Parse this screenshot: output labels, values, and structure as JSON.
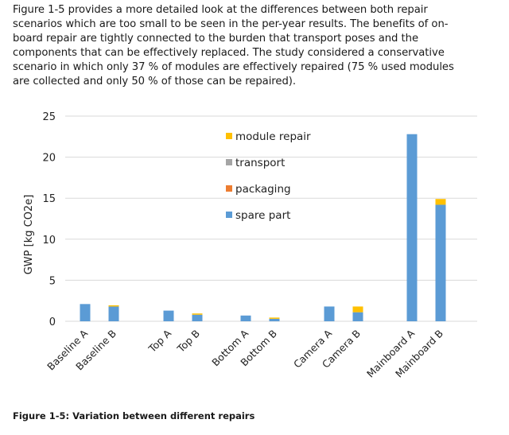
{
  "paragraph": {
    "lines": [
      "Figure 1-5 provides a more detailed look at the differences between both repair",
      "scenarios which are too small to be seen in the per-year results. The benefits of on-",
      "board repair are tightly connected to the burden that transport poses and the",
      "components that can be effectively replaced. The study considered a conservative",
      "scenario in which only 37 % of modules are effectively repaired (75 % used modules",
      "are collected and only 50 % of those can be repaired)."
    ]
  },
  "caption": "Figure 1-5: Variation between different repairs",
  "colors": {
    "spare_part": "#5b9bd5",
    "packaging": "#ed7d31",
    "transport": "#a5a5a5",
    "module_repair": "#ffc000",
    "gridline": "#d9d9d9"
  },
  "chart_data": {
    "type": "bar",
    "stacked": true,
    "title": "",
    "xlabel": "",
    "ylabel": "GWP [kg CO2e]",
    "ylim": [
      0,
      25
    ],
    "yticks": [
      "0",
      "5",
      "10",
      "15",
      "20",
      "25"
    ],
    "grid": true,
    "legend_position": "upper middle",
    "categories": [
      "Baseline A",
      "Baseline B",
      "Top A",
      "Top B",
      "Bottom A",
      "Bottom B",
      "Camera A",
      "Camera B",
      "Mainboard A",
      "Mainboard B"
    ],
    "series": [
      {
        "name": "spare part",
        "values": [
          2.1,
          1.8,
          1.3,
          0.8,
          0.7,
          0.3,
          1.8,
          1.1,
          22.8,
          14.2
        ]
      },
      {
        "name": "packaging",
        "values": [
          0.0,
          0.0,
          0.0,
          0.0,
          0.0,
          0.0,
          0.0,
          0.0,
          0.0,
          0.0
        ]
      },
      {
        "name": "transport",
        "values": [
          0.0,
          0.0,
          0.0,
          0.0,
          0.0,
          0.0,
          0.0,
          0.0,
          0.0,
          0.0
        ]
      },
      {
        "name": "module repair",
        "values": [
          0.0,
          0.15,
          0.0,
          0.15,
          0.0,
          0.15,
          0.0,
          0.7,
          0.0,
          0.7
        ]
      }
    ],
    "legend_order": [
      "module repair",
      "transport",
      "packaging",
      "spare part"
    ]
  }
}
